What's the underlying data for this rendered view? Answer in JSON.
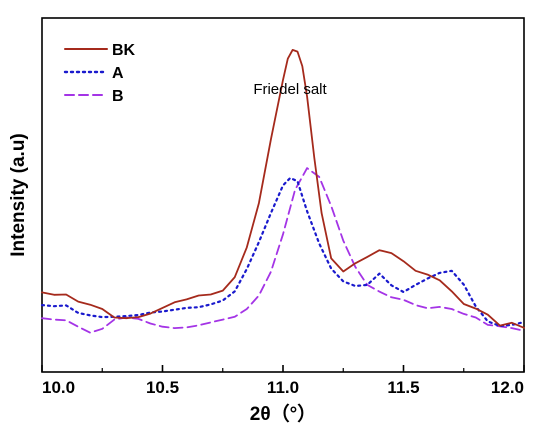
{
  "chart_data": {
    "type": "line",
    "title": "",
    "xlabel": "2θ（°）",
    "ylabel": "Intensity (a.u)",
    "xlim": [
      10.0,
      12.0
    ],
    "ylim": [
      0,
      100
    ],
    "x_ticks": [
      "10.0",
      "10.5",
      "11.0",
      "11.5",
      "12.0"
    ],
    "y_ticks_shown": false,
    "grid": false,
    "legend_position": "top-left",
    "annotations": [
      {
        "text": "Friedel salt",
        "x": 11.05,
        "y": 93
      }
    ],
    "series": [
      {
        "name": "BK",
        "color": "#a52a1c",
        "style": "solid",
        "x": [
          10.0,
          10.05,
          10.1,
          10.15,
          10.2,
          10.25,
          10.3,
          10.35,
          10.4,
          10.45,
          10.5,
          10.55,
          10.6,
          10.65,
          10.7,
          10.75,
          10.8,
          10.85,
          10.9,
          10.95,
          11.0,
          11.02,
          11.04,
          11.06,
          11.08,
          11.1,
          11.13,
          11.16,
          11.2,
          11.25,
          11.3,
          11.35,
          11.4,
          11.45,
          11.5,
          11.55,
          11.6,
          11.65,
          11.7,
          11.75,
          11.8,
          11.85,
          11.9,
          11.95,
          12.0
        ],
        "y": [
          22.5,
          21.8,
          21.9,
          19.9,
          19.0,
          17.8,
          15.4,
          15.2,
          15.5,
          16.5,
          18.1,
          19.7,
          20.5,
          21.6,
          21.9,
          23.0,
          26.8,
          35.2,
          47.7,
          65.7,
          82.5,
          88.5,
          91.0,
          90.5,
          86.4,
          77.8,
          60.5,
          44.9,
          32.1,
          28.4,
          30.7,
          32.5,
          34.4,
          33.6,
          31.3,
          28.6,
          27.5,
          25.9,
          22.8,
          19.2,
          17.9,
          16.2,
          13.1,
          13.9,
          12.5
        ]
      },
      {
        "name": "A",
        "color": "#1a1acd",
        "style": "dotted",
        "x": [
          10.0,
          10.05,
          10.1,
          10.15,
          10.2,
          10.25,
          10.3,
          10.35,
          10.4,
          10.45,
          10.5,
          10.55,
          10.6,
          10.65,
          10.7,
          10.75,
          10.8,
          10.85,
          10.9,
          10.95,
          11.0,
          11.03,
          11.06,
          11.1,
          11.15,
          11.2,
          11.25,
          11.3,
          11.35,
          11.4,
          11.45,
          11.5,
          11.55,
          11.6,
          11.65,
          11.7,
          11.75,
          11.8,
          11.85,
          11.9,
          11.95,
          12.0
        ],
        "y": [
          18.9,
          18.6,
          18.8,
          16.7,
          16.0,
          15.5,
          15.6,
          15.8,
          16.1,
          16.8,
          17.1,
          17.6,
          18.1,
          18.3,
          19.1,
          20.2,
          22.8,
          29.1,
          36.7,
          44.9,
          52.7,
          54.8,
          53.9,
          45.4,
          36.3,
          29.2,
          25.6,
          24.3,
          24.6,
          27.8,
          24.5,
          22.6,
          24.6,
          26.4,
          28.0,
          28.6,
          24.7,
          18.5,
          14.3,
          13.0,
          13.3,
          14.1
        ]
      },
      {
        "name": "B",
        "color": "#a434e6",
        "style": "dashed",
        "x": [
          10.0,
          10.05,
          10.1,
          10.15,
          10.2,
          10.25,
          10.3,
          10.35,
          10.4,
          10.45,
          10.5,
          10.55,
          10.6,
          10.65,
          10.7,
          10.75,
          10.8,
          10.85,
          10.9,
          10.95,
          11.0,
          11.05,
          11.1,
          11.15,
          11.2,
          11.25,
          11.3,
          11.35,
          11.4,
          11.45,
          11.5,
          11.55,
          11.6,
          11.65,
          11.7,
          11.75,
          11.8,
          11.85,
          11.9,
          11.95,
          12.0
        ],
        "y": [
          15.2,
          14.8,
          14.6,
          12.8,
          11.1,
          12.2,
          14.8,
          15.4,
          15.0,
          13.7,
          12.8,
          12.4,
          12.6,
          13.2,
          14.0,
          14.8,
          15.6,
          17.8,
          21.6,
          28.3,
          38.9,
          51.5,
          57.6,
          55.1,
          46.9,
          37.1,
          29.7,
          24.6,
          22.7,
          21.1,
          20.4,
          18.9,
          18.0,
          18.4,
          17.8,
          16.4,
          15.4,
          13.3,
          12.9,
          12.4,
          11.6
        ]
      }
    ]
  }
}
